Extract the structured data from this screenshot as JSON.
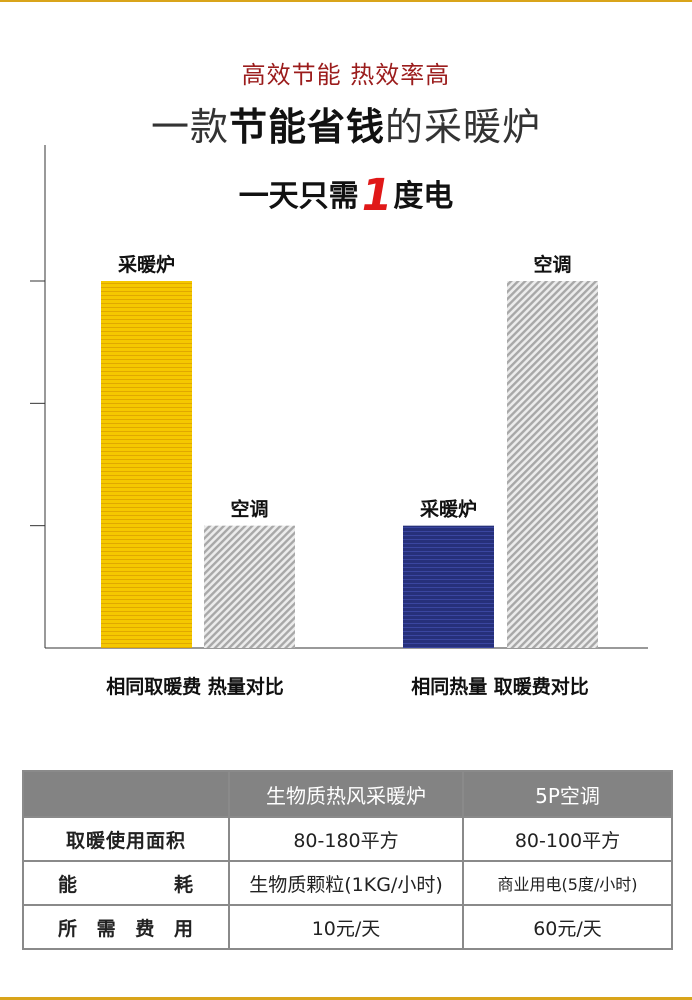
{
  "header": {
    "subtitle": "高效节能 热效率高",
    "title_pre": "一款",
    "title_bold": "节能省钱",
    "title_post": "的采暖炉",
    "headline_pre": "一天只需",
    "headline_num": "1",
    "headline_post": "度电"
  },
  "colors": {
    "accent_line": "#d9a41a",
    "subtitle": "#9b1c1c",
    "heater_yellow": "#f5c800",
    "heater_navy": "#26307a",
    "ac_gray": "#b5b5b5",
    "table_header": "#838383"
  },
  "chart_data": [
    {
      "type": "bar",
      "group_label": "相同取暖费 热量对比",
      "categories": [
        "采暖炉",
        "空调"
      ],
      "values": [
        3,
        1
      ],
      "colors": [
        "#f5c800",
        "#b5b5b5"
      ],
      "ylim": [
        0,
        3
      ],
      "grid": false
    },
    {
      "type": "bar",
      "group_label": "相同热量 取暖费对比",
      "categories": [
        "采暖炉",
        "空调"
      ],
      "values": [
        1,
        3
      ],
      "colors": [
        "#26307a",
        "#b5b5b5"
      ],
      "ylim": [
        0,
        3
      ],
      "grid": false
    }
  ],
  "table": {
    "headers": [
      "",
      "生物质热风采暖炉",
      "5P空调"
    ],
    "rows": [
      [
        "取暖使用面积",
        "80-180平方",
        "80-100平方"
      ],
      [
        "能　　耗",
        "生物质颗粒(1KG/小时)",
        "商业用电(5度/小时)"
      ],
      [
        "所需费用",
        "10元/天",
        "60元/天"
      ]
    ]
  }
}
